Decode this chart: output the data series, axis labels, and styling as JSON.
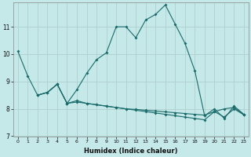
{
  "xlabel": "Humidex (Indice chaleur)",
  "background_color": "#c5e8e8",
  "grid_color": "#b0d0d0",
  "line_color": "#1a6b6b",
  "xlim": [
    -0.5,
    23.5
  ],
  "ylim": [
    7,
    11.9
  ],
  "yticks": [
    7,
    8,
    9,
    10,
    11
  ],
  "xticks": [
    0,
    1,
    2,
    3,
    4,
    5,
    6,
    7,
    8,
    9,
    10,
    11,
    12,
    13,
    14,
    15,
    16,
    17,
    18,
    19,
    20,
    21,
    22,
    23
  ],
  "series1_x": [
    0,
    1,
    2,
    3,
    4,
    5,
    6,
    7,
    8,
    9,
    10,
    11,
    12,
    13,
    14,
    15,
    16,
    17,
    18,
    19,
    20,
    21,
    22,
    23
  ],
  "series1_y": [
    10.1,
    9.2,
    8.5,
    8.6,
    8.9,
    8.2,
    8.7,
    9.3,
    9.8,
    10.05,
    11.0,
    11.0,
    10.6,
    11.25,
    11.45,
    11.8,
    11.1,
    10.4,
    9.4,
    7.75,
    8.0,
    7.65,
    8.1,
    7.8
  ],
  "series2_x": [
    2,
    3,
    4,
    5,
    6,
    7,
    8,
    9,
    10,
    11,
    12,
    13,
    14,
    15,
    16,
    17,
    18,
    19,
    20,
    21,
    22,
    23
  ],
  "series2_y": [
    8.5,
    8.6,
    8.9,
    8.2,
    8.3,
    8.2,
    8.15,
    8.1,
    8.05,
    8.0,
    7.95,
    7.9,
    7.85,
    7.8,
    7.75,
    7.7,
    7.65,
    7.6,
    7.9,
    7.7,
    8.0,
    7.78
  ],
  "series3_x": [
    2,
    3,
    4,
    5,
    6,
    7,
    8,
    9,
    10,
    11,
    12,
    13,
    14,
    15,
    16,
    17,
    18,
    19,
    20,
    21,
    22,
    23
  ],
  "series3_y": [
    8.5,
    8.6,
    8.9,
    8.2,
    8.25,
    8.2,
    8.15,
    8.1,
    8.05,
    8.0,
    7.98,
    7.95,
    7.92,
    7.89,
    7.86,
    7.83,
    7.8,
    7.77,
    7.9,
    8.0,
    8.05,
    7.78
  ]
}
